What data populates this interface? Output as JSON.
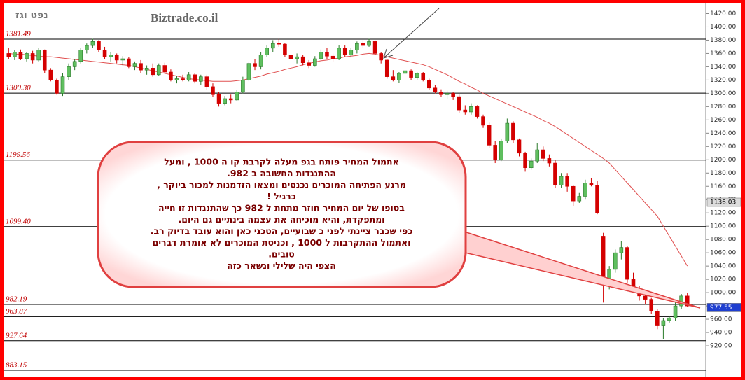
{
  "chart_data": {
    "type": "candlestick",
    "title": "נפט וגז",
    "watermark": "Biztrade.co.il",
    "up_color": "#5fbf5f",
    "down_color": "#d40000",
    "ma_color": "#e05050",
    "level_color": "#000000",
    "ylim": [
      880,
      1430
    ],
    "yticks": [
      {
        "value": 920,
        "label": "920.00"
      },
      {
        "value": 940,
        "label": "940.00"
      },
      {
        "value": 960,
        "label": "960.00"
      },
      {
        "value": 980,
        "label": "980.00"
      },
      {
        "value": 1000,
        "label": "1000.00"
      },
      {
        "value": 1020,
        "label": "1020.00"
      },
      {
        "value": 1040,
        "label": "1040.00"
      },
      {
        "value": 1060,
        "label": "1060.00"
      },
      {
        "value": 1080,
        "label": "1080.00"
      },
      {
        "value": 1100,
        "label": "1100.00"
      },
      {
        "value": 1120,
        "label": "1120.00"
      },
      {
        "value": 1140,
        "label": "1140.00"
      },
      {
        "value": 1160,
        "label": "1160.00"
      },
      {
        "value": 1180,
        "label": "1180.00"
      },
      {
        "value": 1200,
        "label": "1200.00"
      },
      {
        "value": 1220,
        "label": "1220.00"
      },
      {
        "value": 1240,
        "label": "1240.00"
      },
      {
        "value": 1260,
        "label": "1260.00"
      },
      {
        "value": 1280,
        "label": "1280.00"
      },
      {
        "value": 1300,
        "label": "1300.00"
      },
      {
        "value": 1320,
        "label": "1320.00"
      },
      {
        "value": 1340,
        "label": "1340.00"
      },
      {
        "value": 1360,
        "label": "1360.00"
      },
      {
        "value": 1380,
        "label": "1380.00"
      },
      {
        "value": 1400,
        "label": "1400.00"
      },
      {
        "value": 1420,
        "label": "1420.00"
      }
    ],
    "levels": [
      1381.49,
      {
        "value": 1300.3,
        "label": "1300.30"
      },
      1199.56,
      {
        "value": 1099.4,
        "label": "1099.40"
      },
      982.19,
      963.87,
      927.64,
      883.15
    ],
    "price_tags": [
      {
        "value": 1136.03,
        "color": "#dddddd"
      },
      {
        "value": 977.55,
        "color": "#1f3fd0"
      }
    ],
    "ohlc": [
      [
        1360,
        1368,
        1352,
        1355
      ],
      [
        1355,
        1365,
        1350,
        1362
      ],
      [
        1362,
        1366,
        1350,
        1352
      ],
      [
        1352,
        1362,
        1348,
        1360
      ],
      [
        1360,
        1364,
        1345,
        1350
      ],
      [
        1350,
        1368,
        1348,
        1365
      ],
      [
        1365,
        1366,
        1330,
        1335
      ],
      [
        1335,
        1338,
        1318,
        1320
      ],
      [
        1320,
        1322,
        1298,
        1300
      ],
      [
        1300,
        1330,
        1296,
        1325
      ],
      [
        1325,
        1345,
        1320,
        1340
      ],
      [
        1340,
        1352,
        1335,
        1348
      ],
      [
        1348,
        1368,
        1345,
        1365
      ],
      [
        1365,
        1375,
        1360,
        1372
      ],
      [
        1372,
        1382,
        1368,
        1378
      ],
      [
        1378,
        1380,
        1362,
        1365
      ],
      [
        1365,
        1370,
        1352,
        1355
      ],
      [
        1355,
        1362,
        1348,
        1358
      ],
      [
        1358,
        1360,
        1345,
        1350
      ],
      [
        1350,
        1356,
        1342,
        1352
      ],
      [
        1352,
        1355,
        1338,
        1340
      ],
      [
        1340,
        1348,
        1335,
        1345
      ],
      [
        1345,
        1350,
        1330,
        1335
      ],
      [
        1335,
        1342,
        1328,
        1338
      ],
      [
        1338,
        1345,
        1325,
        1328
      ],
      [
        1328,
        1345,
        1326,
        1342
      ],
      [
        1342,
        1346,
        1330,
        1332
      ],
      [
        1332,
        1336,
        1318,
        1320
      ],
      [
        1320,
        1326,
        1315,
        1322
      ],
      [
        1322,
        1328,
        1318,
        1320
      ],
      [
        1320,
        1332,
        1318,
        1328
      ],
      [
        1328,
        1330,
        1315,
        1318
      ],
      [
        1318,
        1328,
        1312,
        1325
      ],
      [
        1325,
        1328,
        1305,
        1310
      ],
      [
        1310,
        1315,
        1295,
        1298
      ],
      [
        1298,
        1302,
        1280,
        1285
      ],
      [
        1285,
        1296,
        1282,
        1292
      ],
      [
        1292,
        1298,
        1285,
        1290
      ],
      [
        1290,
        1305,
        1288,
        1302
      ],
      [
        1302,
        1325,
        1300,
        1320
      ],
      [
        1320,
        1348,
        1318,
        1345
      ],
      [
        1345,
        1352,
        1335,
        1340
      ],
      [
        1340,
        1362,
        1336,
        1358
      ],
      [
        1358,
        1372,
        1355,
        1368
      ],
      [
        1368,
        1380,
        1362,
        1375
      ],
      [
        1375,
        1382,
        1370,
        1374
      ],
      [
        1374,
        1376,
        1355,
        1358
      ],
      [
        1358,
        1362,
        1348,
        1352
      ],
      [
        1352,
        1360,
        1345,
        1355
      ],
      [
        1355,
        1358,
        1342,
        1346
      ],
      [
        1346,
        1350,
        1338,
        1342
      ],
      [
        1342,
        1356,
        1340,
        1352
      ],
      [
        1352,
        1366,
        1350,
        1362
      ],
      [
        1362,
        1368,
        1352,
        1356
      ],
      [
        1356,
        1360,
        1348,
        1352
      ],
      [
        1352,
        1372,
        1350,
        1368
      ],
      [
        1368,
        1372,
        1355,
        1358
      ],
      [
        1358,
        1368,
        1354,
        1365
      ],
      [
        1365,
        1378,
        1360,
        1375
      ],
      [
        1375,
        1380,
        1368,
        1372
      ],
      [
        1372,
        1382,
        1370,
        1378
      ],
      [
        1378,
        1380,
        1358,
        1360
      ],
      [
        1360,
        1362,
        1345,
        1350
      ],
      [
        1350,
        1352,
        1322,
        1325
      ],
      [
        1325,
        1335,
        1318,
        1320
      ],
      [
        1320,
        1332,
        1316,
        1330
      ],
      [
        1330,
        1338,
        1325,
        1334
      ],
      [
        1334,
        1336,
        1320,
        1324
      ],
      [
        1324,
        1332,
        1320,
        1330
      ],
      [
        1330,
        1332,
        1318,
        1320
      ],
      [
        1320,
        1322,
        1305,
        1308
      ],
      [
        1308,
        1312,
        1300,
        1302
      ],
      [
        1302,
        1306,
        1295,
        1298
      ],
      [
        1298,
        1304,
        1292,
        1300
      ],
      [
        1300,
        1302,
        1290,
        1295
      ],
      [
        1295,
        1298,
        1270,
        1275
      ],
      [
        1275,
        1282,
        1268,
        1272
      ],
      [
        1272,
        1285,
        1268,
        1280
      ],
      [
        1280,
        1282,
        1262,
        1265
      ],
      [
        1265,
        1268,
        1248,
        1252
      ],
      [
        1252,
        1256,
        1218,
        1222
      ],
      [
        1222,
        1228,
        1195,
        1200
      ],
      [
        1200,
        1232,
        1198,
        1228
      ],
      [
        1228,
        1262,
        1225,
        1255
      ],
      [
        1255,
        1258,
        1225,
        1230
      ],
      [
        1230,
        1232,
        1205,
        1210
      ],
      [
        1210,
        1212,
        1182,
        1188
      ],
      [
        1188,
        1202,
        1185,
        1198
      ],
      [
        1198,
        1225,
        1195,
        1215
      ],
      [
        1215,
        1220,
        1198,
        1202
      ],
      [
        1202,
        1208,
        1190,
        1195
      ],
      [
        1195,
        1200,
        1158,
        1162
      ],
      [
        1162,
        1180,
        1158,
        1175
      ],
      [
        1175,
        1180,
        1152,
        1160
      ],
      [
        1160,
        1162,
        1130,
        1138
      ],
      [
        1138,
        1150,
        1135,
        1145
      ],
      [
        1145,
        1170,
        1140,
        1165
      ],
      [
        1165,
        1172,
        1160,
        1162
      ],
      [
        1162,
        1168,
        1118,
        1120
      ],
      [
        1085,
        1090,
        985,
        1020
      ],
      [
        1020,
        1040,
        1005,
        1035
      ],
      [
        1035,
        1065,
        1030,
        1060
      ],
      [
        1060,
        1078,
        1050,
        1068
      ],
      [
        1068,
        1070,
        1015,
        1020
      ],
      [
        1020,
        1030,
        1000,
        1005
      ],
      [
        1005,
        1010,
        988,
        995
      ],
      [
        995,
        1000,
        982,
        990
      ],
      [
        990,
        992,
        968,
        972
      ],
      [
        972,
        975,
        945,
        950
      ],
      [
        950,
        962,
        930,
        958
      ],
      [
        958,
        965,
        955,
        962
      ],
      [
        962,
        985,
        958,
        980
      ],
      [
        980,
        998,
        975,
        995
      ],
      [
        995,
        1000,
        978,
        980
      ]
    ],
    "ma": [
      1360,
      1359,
      1359,
      1358,
      1357,
      1356,
      1355,
      1355,
      1354,
      1353,
      1352,
      1351,
      1350,
      1349,
      1348,
      1347,
      1346,
      1345,
      1344,
      1343,
      1342,
      1340,
      1338,
      1336,
      1334,
      1332,
      1330,
      1328,
      1326,
      1324,
      1322,
      1321,
      1320,
      1319,
      1318,
      1318,
      1318,
      1318,
      1319,
      1320,
      1322,
      1324,
      1326,
      1329,
      1331,
      1333,
      1336,
      1338,
      1340,
      1343,
      1345,
      1347,
      1349,
      1350,
      1352,
      1353,
      1355,
      1356,
      1357,
      1359,
      1360,
      1359,
      1357,
      1355,
      1353,
      1351,
      1349,
      1347,
      1345,
      1343,
      1340,
      1336,
      1332,
      1328,
      1323,
      1318,
      1314,
      1309,
      1305,
      1300,
      1296,
      1292,
      1288,
      1284,
      1280,
      1276,
      1272,
      1268,
      1264,
      1259,
      1255,
      1250,
      1244,
      1238,
      1232,
      1226,
      1220,
      1214,
      1208,
      1202,
      1195,
      1185,
      1175,
      1165,
      1155,
      1145,
      1135,
      1125,
      1115,
      1100,
      1085,
      1070,
      1055,
      1040
    ],
    "annotation": [
      "אתמול המחיר פותח בגפ מעלה  לקרבת קו ה 1000 , ומעל",
      "ההתנגדות החשובה ב 982.",
      "מרגע הפתיחה המוכרים נכנסים ומצאו הזדמנות  למכור ביוקר  ,",
      "כרגיל !",
      "בסופו של יום המחיר חוזר מתחת ל 982 כך  שהתנגדות זו חייה",
      "ומתפקדת, והיא מוכיחה את עצמה בינתיים גם היום.",
      "כפי  שכבר  ציינתי לפני  כ שבועיים, הטכני כאן והוא עובד בדיוק רב.",
      "ואתמול  ההתקרבות ל 1000 , וכניסת המוכרים  לא  אומרת דברים",
      "טובים.",
      "הצפי היה  שלילי ונשאר  כזה"
    ]
  }
}
